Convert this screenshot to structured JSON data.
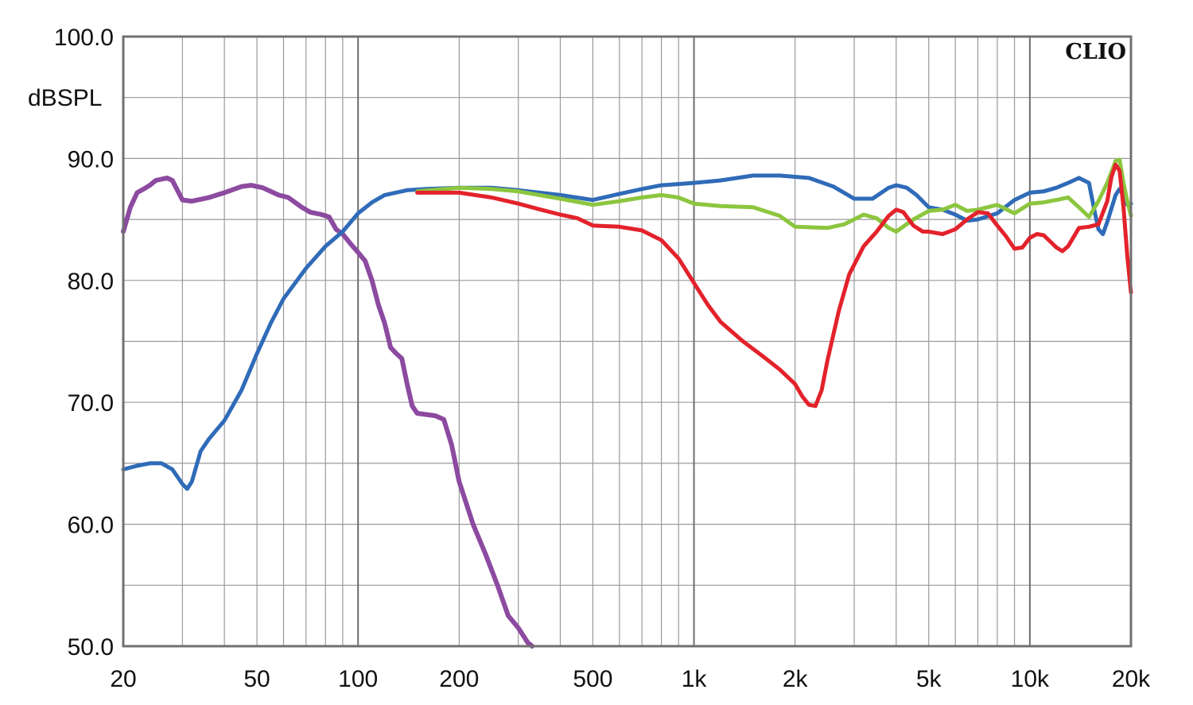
{
  "chart_data": {
    "type": "line",
    "ylabel": "dBSPL",
    "watermark": "CLIO",
    "xscale": "log",
    "xlim": [
      20,
      20000
    ],
    "ylim": [
      50,
      100
    ],
    "xticks": [
      20,
      50,
      100,
      200,
      500,
      1000,
      2000,
      5000,
      10000,
      20000
    ],
    "xtick_labels": [
      "20",
      "50",
      "100",
      "200",
      "500",
      "1k",
      "2k",
      "5k",
      "10k",
      "20k"
    ],
    "yticks": [
      50,
      60,
      70,
      80,
      90,
      100
    ],
    "ytick_labels": [
      "50.0",
      "60.0",
      "70.0",
      "80.0",
      "90.0",
      "100.0"
    ],
    "grid": true,
    "series": [
      {
        "color": "#8c4aa0",
        "points": [
          [
            20,
            84
          ],
          [
            21,
            86
          ],
          [
            22,
            87.2
          ],
          [
            23,
            87.5
          ],
          [
            24,
            87.8
          ],
          [
            25,
            88.2
          ],
          [
            27,
            88.4
          ],
          [
            28,
            88.2
          ],
          [
            30,
            86.6
          ],
          [
            32,
            86.5
          ],
          [
            36,
            86.8
          ],
          [
            40,
            87.2
          ],
          [
            45,
            87.7
          ],
          [
            48,
            87.8
          ],
          [
            52,
            87.6
          ],
          [
            58,
            87
          ],
          [
            62,
            86.8
          ],
          [
            68,
            86
          ],
          [
            72,
            85.6
          ],
          [
            78,
            85.4
          ],
          [
            82,
            85.2
          ],
          [
            86,
            84.2
          ],
          [
            90,
            83.8
          ],
          [
            95,
            83
          ],
          [
            100,
            82.3
          ],
          [
            105,
            81.6
          ],
          [
            110,
            80
          ],
          [
            115,
            78
          ],
          [
            120,
            76.5
          ],
          [
            125,
            74.5
          ],
          [
            130,
            74
          ],
          [
            135,
            73.6
          ],
          [
            140,
            71.5
          ],
          [
            145,
            69.7
          ],
          [
            150,
            69.1
          ],
          [
            170,
            68.9
          ],
          [
            180,
            68.6
          ],
          [
            190,
            66.5
          ],
          [
            200,
            63.5
          ],
          [
            220,
            60
          ],
          [
            240,
            57.5
          ],
          [
            260,
            55
          ],
          [
            280,
            52.5
          ],
          [
            300,
            51.5
          ],
          [
            320,
            50.3
          ],
          [
            330,
            50
          ]
        ]
      },
      {
        "color": "#2f6bb8",
        "points": [
          [
            20,
            64.5
          ],
          [
            22,
            64.8
          ],
          [
            24,
            65
          ],
          [
            26,
            65
          ],
          [
            28,
            64.5
          ],
          [
            30,
            63.3
          ],
          [
            31,
            62.9
          ],
          [
            32,
            63.5
          ],
          [
            34,
            66
          ],
          [
            36,
            67
          ],
          [
            40,
            68.5
          ],
          [
            45,
            71
          ],
          [
            50,
            74
          ],
          [
            55,
            76.5
          ],
          [
            60,
            78.5
          ],
          [
            70,
            81
          ],
          [
            80,
            82.8
          ],
          [
            90,
            84
          ],
          [
            100,
            85.5
          ],
          [
            110,
            86.4
          ],
          [
            120,
            87
          ],
          [
            140,
            87.4
          ],
          [
            160,
            87.5
          ],
          [
            200,
            87.6
          ],
          [
            250,
            87.6
          ],
          [
            300,
            87.4
          ],
          [
            400,
            87
          ],
          [
            500,
            86.6
          ],
          [
            600,
            87.1
          ],
          [
            700,
            87.5
          ],
          [
            800,
            87.8
          ],
          [
            1000,
            88
          ],
          [
            1200,
            88.2
          ],
          [
            1500,
            88.6
          ],
          [
            1800,
            88.6
          ],
          [
            2200,
            88.4
          ],
          [
            2600,
            87.7
          ],
          [
            3000,
            86.7
          ],
          [
            3400,
            86.7
          ],
          [
            3800,
            87.6
          ],
          [
            4000,
            87.8
          ],
          [
            4300,
            87.6
          ],
          [
            4600,
            87
          ],
          [
            5000,
            86
          ],
          [
            5500,
            85.8
          ],
          [
            6000,
            85.4
          ],
          [
            6500,
            84.9
          ],
          [
            7000,
            85
          ],
          [
            8000,
            85.5
          ],
          [
            9000,
            86.6
          ],
          [
            10000,
            87.2
          ],
          [
            11000,
            87.3
          ],
          [
            12000,
            87.6
          ],
          [
            13000,
            88
          ],
          [
            14000,
            88.4
          ],
          [
            15000,
            88
          ],
          [
            15500,
            86
          ],
          [
            16000,
            84.2
          ],
          [
            16500,
            83.8
          ],
          [
            17000,
            84.8
          ],
          [
            18000,
            87
          ],
          [
            18500,
            87.5
          ],
          [
            19000,
            87
          ],
          [
            19500,
            86.2
          ],
          [
            20000,
            86.3
          ]
        ]
      },
      {
        "color": "#8cc63f",
        "points": [
          [
            150,
            87.3
          ],
          [
            200,
            87.6
          ],
          [
            250,
            87.5
          ],
          [
            300,
            87.3
          ],
          [
            400,
            86.7
          ],
          [
            500,
            86.2
          ],
          [
            600,
            86.5
          ],
          [
            700,
            86.8
          ],
          [
            800,
            87
          ],
          [
            900,
            86.8
          ],
          [
            1000,
            86.3
          ],
          [
            1200,
            86.1
          ],
          [
            1500,
            86
          ],
          [
            1800,
            85.3
          ],
          [
            2000,
            84.4
          ],
          [
            2500,
            84.3
          ],
          [
            2800,
            84.6
          ],
          [
            3200,
            85.4
          ],
          [
            3500,
            85.1
          ],
          [
            3800,
            84.3
          ],
          [
            4000,
            84
          ],
          [
            4500,
            85
          ],
          [
            5000,
            85.7
          ],
          [
            5500,
            85.8
          ],
          [
            6000,
            86.2
          ],
          [
            6500,
            85.7
          ],
          [
            7000,
            85.8
          ],
          [
            8000,
            86.2
          ],
          [
            9000,
            85.5
          ],
          [
            10000,
            86.3
          ],
          [
            11000,
            86.4
          ],
          [
            12000,
            86.6
          ],
          [
            13000,
            86.8
          ],
          [
            14000,
            86
          ],
          [
            15000,
            85.2
          ],
          [
            16000,
            86.5
          ],
          [
            17000,
            88
          ],
          [
            18000,
            89.8
          ],
          [
            18500,
            89.9
          ],
          [
            19000,
            88
          ],
          [
            19500,
            86.5
          ],
          [
            20000,
            85.3
          ]
        ]
      },
      {
        "color": "#e3222b",
        "points": [
          [
            150,
            87.2
          ],
          [
            200,
            87.2
          ],
          [
            250,
            86.8
          ],
          [
            300,
            86.3
          ],
          [
            350,
            85.8
          ],
          [
            400,
            85.4
          ],
          [
            450,
            85.1
          ],
          [
            500,
            84.5
          ],
          [
            600,
            84.4
          ],
          [
            700,
            84.1
          ],
          [
            800,
            83.3
          ],
          [
            900,
            81.8
          ],
          [
            1000,
            79.8
          ],
          [
            1100,
            78
          ],
          [
            1200,
            76.6
          ],
          [
            1400,
            75
          ],
          [
            1600,
            73.8
          ],
          [
            1800,
            72.7
          ],
          [
            2000,
            71.5
          ],
          [
            2100,
            70.5
          ],
          [
            2200,
            69.8
          ],
          [
            2300,
            69.7
          ],
          [
            2400,
            71
          ],
          [
            2500,
            73.5
          ],
          [
            2700,
            77.5
          ],
          [
            2900,
            80.5
          ],
          [
            3200,
            82.8
          ],
          [
            3500,
            84
          ],
          [
            3800,
            85.3
          ],
          [
            4000,
            85.8
          ],
          [
            4200,
            85.6
          ],
          [
            4500,
            84.5
          ],
          [
            4800,
            84
          ],
          [
            5000,
            84
          ],
          [
            5500,
            83.8
          ],
          [
            6000,
            84.2
          ],
          [
            6500,
            85
          ],
          [
            7000,
            85.6
          ],
          [
            7500,
            85.5
          ],
          [
            8000,
            84.5
          ],
          [
            8500,
            83.6
          ],
          [
            9000,
            82.6
          ],
          [
            9500,
            82.7
          ],
          [
            10000,
            83.5
          ],
          [
            10500,
            83.8
          ],
          [
            11000,
            83.7
          ],
          [
            12000,
            82.7
          ],
          [
            12500,
            82.4
          ],
          [
            13000,
            82.8
          ],
          [
            14000,
            84.3
          ],
          [
            15000,
            84.4
          ],
          [
            16000,
            84.6
          ],
          [
            17000,
            86.5
          ],
          [
            17500,
            88.5
          ],
          [
            18000,
            89.5
          ],
          [
            18500,
            89
          ],
          [
            19000,
            86
          ],
          [
            19500,
            82
          ],
          [
            20000,
            79
          ]
        ]
      }
    ]
  }
}
